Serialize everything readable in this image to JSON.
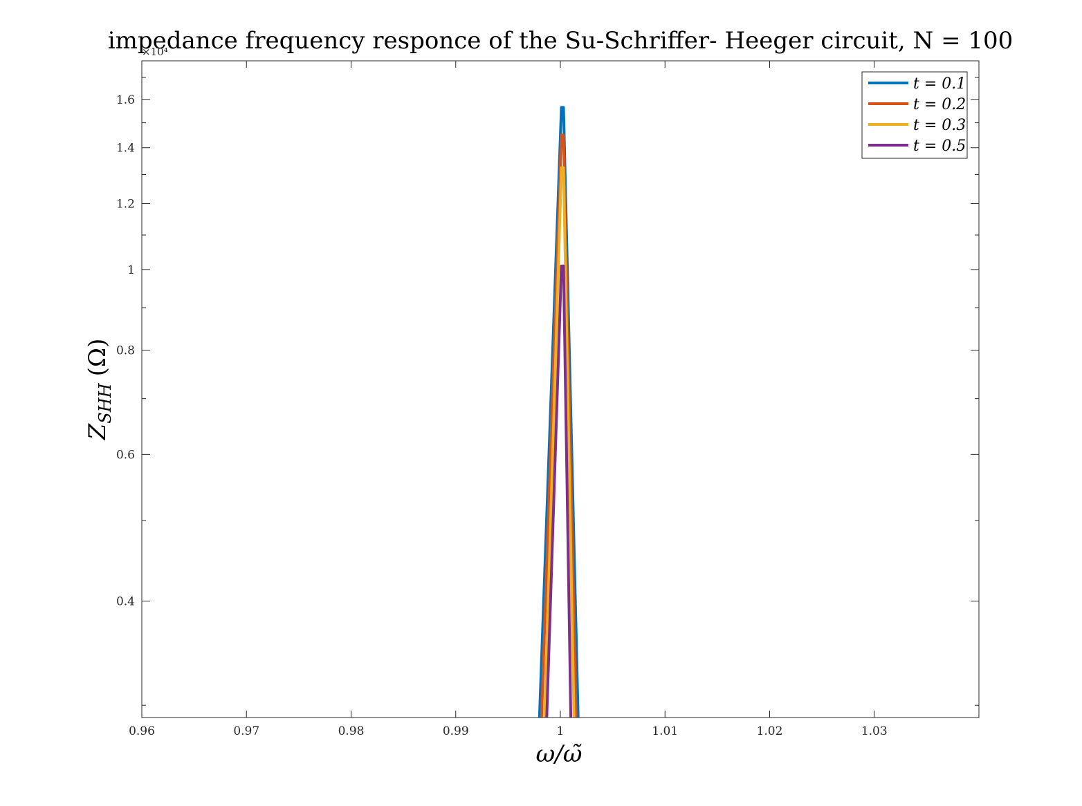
{
  "chart_data": {
    "type": "line",
    "title": "impedance frequency responce of the Su-Schriffer- Heeger circuit, N = 100",
    "xlabel": "ω/ω̃",
    "ylabel_main": "Z",
    "ylabel_sub": "SHH",
    "ylabel_unit": "(Ω)",
    "y_exponent": "×10⁴",
    "y_scale": "log",
    "xlim": [
      0.96,
      1.04
    ],
    "ylim": [
      0.29,
      1.78
    ],
    "x_ticks": [
      0.96,
      0.97,
      0.98,
      0.99,
      1.0,
      1.01,
      1.02,
      1.03
    ],
    "x_tick_labels": [
      "0.96",
      "0.97",
      "0.98",
      "0.99",
      "1",
      "1.01",
      "1.02",
      "1.03"
    ],
    "y_ticks": [
      0.4,
      0.6,
      0.8,
      1.0,
      1.2,
      1.4,
      1.6
    ],
    "y_tick_labels": [
      "0.4",
      "0.6",
      "0.8",
      "1",
      "1.2",
      "1.4",
      "1.6"
    ],
    "grid": false,
    "legend_position": "top-right",
    "series": [
      {
        "name": "t = 0.1",
        "color": "#0072BD",
        "x": [
          0.998,
          1.0001,
          1.0003,
          1.0017
        ],
        "y": [
          0.29,
          1.565,
          1.565,
          0.29
        ]
      },
      {
        "name": "t = 0.2",
        "color": "#D95319",
        "x": [
          0.9982,
          1.0001,
          1.0003,
          1.0015
        ],
        "y": [
          0.29,
          1.45,
          1.45,
          0.29
        ]
      },
      {
        "name": "t = 0.3",
        "color": "#EDB120",
        "x": [
          0.9985,
          1.0001,
          1.0003,
          1.0013
        ],
        "y": [
          0.29,
          1.325,
          1.325,
          0.29
        ]
      },
      {
        "name": "t = 0.5",
        "color": "#7E2F8E",
        "x": [
          0.9987,
          1.0001,
          1.0003,
          1.001
        ],
        "y": [
          0.29,
          1.01,
          1.01,
          0.29
        ]
      }
    ]
  }
}
